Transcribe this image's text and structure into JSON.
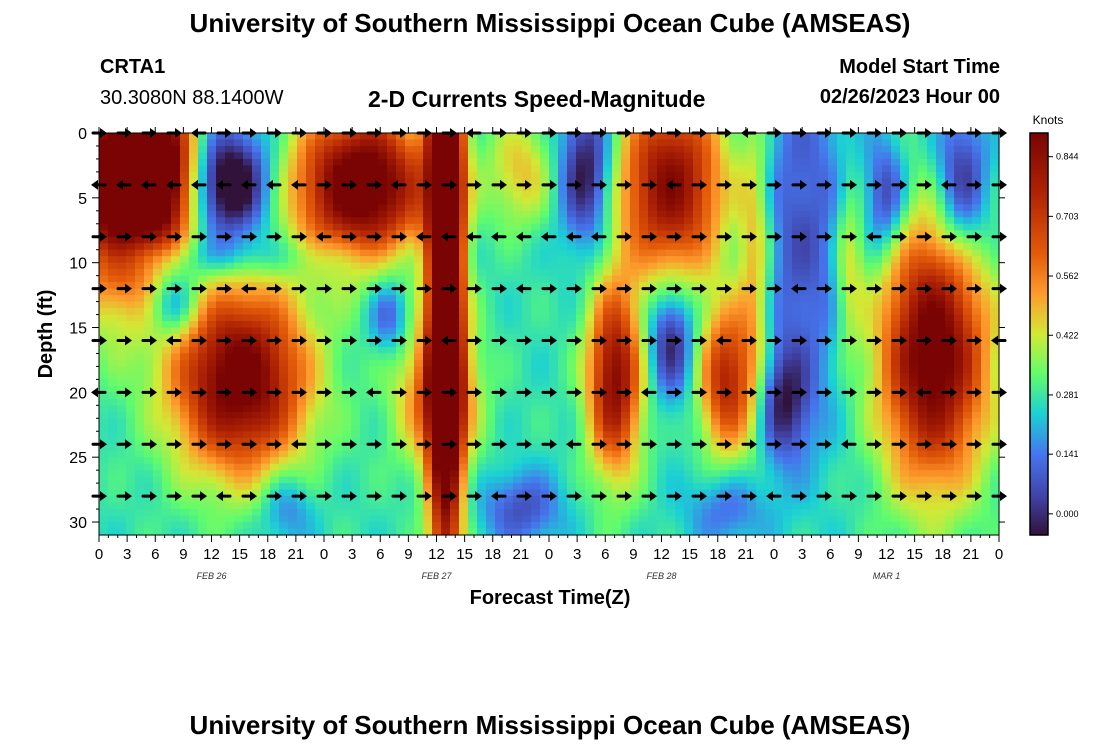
{
  "header": {
    "title": "University of Southern Mississippi Ocean Cube (AMSEAS)",
    "station_id": "CRTA1",
    "station_coords": "30.3080N  88.1400W",
    "plot_title": "2-D Currents Speed-Magnitude",
    "model_start_label": "Model Start Time",
    "model_start_value": "02/26/2023 Hour 00"
  },
  "footer": {
    "title": "University of Southern Mississippi Ocean Cube (AMSEAS)"
  },
  "chart_data": {
    "type": "heatmap",
    "title": "2-D Currents Speed-Magnitude",
    "xlabel": "Forecast Time(Z)",
    "ylabel": "Depth (ft)",
    "x_range_hours": [
      0,
      96
    ],
    "ylim": [
      31,
      0
    ],
    "x_tick_labels": [
      "0",
      "3",
      "6",
      "9",
      "12",
      "15",
      "18",
      "21",
      "0",
      "3",
      "6",
      "9",
      "12",
      "15",
      "18",
      "21",
      "0",
      "3",
      "6",
      "9",
      "12",
      "15",
      "18",
      "21",
      "0",
      "3",
      "6",
      "9",
      "12",
      "15",
      "18",
      "21",
      "0"
    ],
    "y_ticks": [
      0,
      5,
      10,
      15,
      20,
      25,
      30
    ],
    "date_labels": [
      {
        "text": "FEB 26",
        "hour": 12
      },
      {
        "text": "FEB 27",
        "hour": 36
      },
      {
        "text": "FEB 28",
        "hour": 60
      },
      {
        "text": "MAR 1",
        "hour": 84
      }
    ],
    "colorbar": {
      "unit": "Knots",
      "min": -0.05,
      "max": 0.9,
      "tick_values": [
        0.844,
        0.703,
        0.562,
        0.422,
        0.281,
        0.141,
        0.0
      ],
      "tick_labels": [
        "0.844",
        "0.703",
        "0.562",
        "0.422",
        "0.281",
        "0.141",
        "0.000"
      ]
    },
    "arrow_depths_ft": [
      0,
      4,
      8,
      12,
      16,
      20,
      24,
      28
    ],
    "arrow_hour_step": 2.6667,
    "speed_blobs": [
      {
        "h": 2,
        "d": 4,
        "sh": 4,
        "sd": 6,
        "v": 0.75
      },
      {
        "h": 7,
        "d": 3,
        "sh": 2.5,
        "sd": 4,
        "v": 0.55
      },
      {
        "h": 14,
        "d": 4,
        "sh": 3,
        "sd": 3,
        "v": -0.45
      },
      {
        "h": 28,
        "d": 4,
        "sh": 5,
        "sd": 4,
        "v": 0.75
      },
      {
        "h": 37,
        "d": 7,
        "sh": 1.3,
        "sd": 22,
        "v": 0.95
      },
      {
        "h": 45,
        "d": 3,
        "sh": 2.5,
        "sd": 3,
        "v": 0.2
      },
      {
        "h": 52,
        "d": 3,
        "sh": 2,
        "sd": 4,
        "v": -0.35
      },
      {
        "h": 61,
        "d": 4,
        "sh": 4,
        "sd": 5,
        "v": 0.6
      },
      {
        "h": 55,
        "d": 19,
        "sh": 2,
        "sd": 5,
        "v": 0.6
      },
      {
        "h": 61,
        "d": 16,
        "sh": 1.7,
        "sd": 3,
        "v": -0.3
      },
      {
        "h": 67,
        "d": 19,
        "sh": 2,
        "sd": 4,
        "v": 0.5
      },
      {
        "h": 15,
        "d": 19,
        "sh": 5,
        "sd": 5,
        "v": 0.7
      },
      {
        "h": 8,
        "d": 13,
        "sh": 2,
        "sd": 2,
        "v": -0.25
      },
      {
        "h": 31,
        "d": 14,
        "sh": 1.5,
        "sd": 2,
        "v": -0.2
      },
      {
        "h": 36,
        "d": 20,
        "sh": 3,
        "sd": 4,
        "v": 0.35
      },
      {
        "h": 89,
        "d": 17,
        "sh": 4,
        "sd": 7,
        "v": 0.7
      },
      {
        "h": 75,
        "d": 8,
        "sh": 4,
        "sd": 10,
        "v": -0.2
      },
      {
        "h": 84,
        "d": 5,
        "sh": 1.5,
        "sd": 3,
        "v": -0.25
      },
      {
        "h": 92,
        "d": 4,
        "sh": 2,
        "sd": 4,
        "v": -0.3
      },
      {
        "h": 80,
        "d": 10,
        "sh": 1.2,
        "sd": 5,
        "v": 0.2
      },
      {
        "h": 73,
        "d": 21,
        "sh": 2,
        "sd": 3,
        "v": -0.25
      },
      {
        "h": 20,
        "d": 29,
        "sh": 2,
        "sd": 2,
        "v": -0.15
      },
      {
        "h": 45,
        "d": 29,
        "sh": 3,
        "sd": 2,
        "v": -0.2
      },
      {
        "h": 67,
        "d": 29,
        "sh": 3,
        "sd": 2,
        "v": -0.15
      },
      {
        "h": 70,
        "d": 10,
        "sh": 1.3,
        "sd": 8,
        "v": 0.25
      },
      {
        "h": 11,
        "d": 9.5,
        "sh": 14,
        "sd": 1.2,
        "v": -0.1
      }
    ]
  }
}
